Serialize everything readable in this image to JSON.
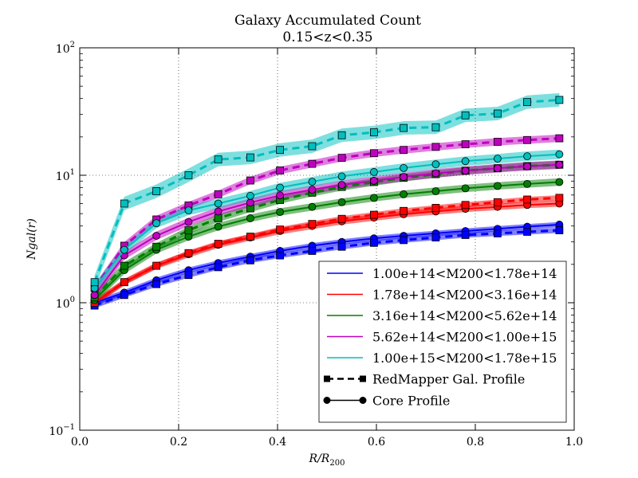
{
  "chart_data": {
    "type": "line",
    "title": "Galaxy Accumulated Count",
    "subtitle": "0.15<z<0.35",
    "xlabel": "R/R",
    "xlabel_sub": "200",
    "ylabel": "Ngal(r)",
    "xlim": [
      0.0,
      1.0
    ],
    "ylim": [
      0.1,
      100
    ],
    "yscale": "log",
    "grid": true,
    "legend_position": "lower-right",
    "x_ticks": [
      "0.0",
      "0.2",
      "0.4",
      "0.6",
      "0.8",
      "1.0"
    ],
    "y_ticks": [
      {
        "base": "10",
        "exp": "−1",
        "value": 0.1
      },
      {
        "base": "10",
        "exp": "0",
        "value": 1
      },
      {
        "base": "10",
        "exp": "1",
        "value": 10
      },
      {
        "base": "10",
        "exp": "2",
        "value": 100
      }
    ],
    "x": [
      0.03,
      0.09,
      0.155,
      0.22,
      0.28,
      0.345,
      0.405,
      0.47,
      0.53,
      0.595,
      0.655,
      0.72,
      0.78,
      0.845,
      0.905,
      0.97
    ],
    "series": [
      {
        "name": "1.00e+14<M200<1.78e+14",
        "color": "#0000ff",
        "redmapper": [
          0.95,
          1.15,
          1.4,
          1.65,
          1.9,
          2.15,
          2.35,
          2.55,
          2.75,
          2.95,
          3.1,
          3.25,
          3.4,
          3.5,
          3.6,
          3.7
        ],
        "redmapper_band": 0.05,
        "core": [
          1.0,
          1.2,
          1.5,
          1.8,
          2.05,
          2.3,
          2.55,
          2.8,
          3.0,
          3.2,
          3.35,
          3.5,
          3.65,
          3.8,
          3.95,
          4.1
        ],
        "core_band": 0.05
      },
      {
        "name": "1.78e+14<M200<3.16e+14",
        "color": "#ff0000",
        "redmapper": [
          1.0,
          1.45,
          1.95,
          2.45,
          2.9,
          3.3,
          3.75,
          4.15,
          4.55,
          4.9,
          5.25,
          5.55,
          5.85,
          6.15,
          6.45,
          6.65
        ],
        "redmapper_band": 0.05,
        "core": [
          1.0,
          1.45,
          1.95,
          2.4,
          2.85,
          3.25,
          3.65,
          4.0,
          4.35,
          4.65,
          4.95,
          5.2,
          5.45,
          5.65,
          5.85,
          6.0
        ],
        "core_band": 0.06
      },
      {
        "name": "3.16e+14<M200<5.62e+14",
        "color": "#008000",
        "redmapper": [
          1.1,
          1.95,
          2.75,
          3.7,
          4.6,
          5.5,
          6.4,
          7.3,
          8.1,
          8.85,
          9.55,
          10.2,
          10.85,
          11.35,
          11.8,
          12.1
        ],
        "redmapper_band": 0.07,
        "core": [
          1.05,
          1.8,
          2.6,
          3.3,
          3.95,
          4.6,
          5.15,
          5.65,
          6.15,
          6.65,
          7.1,
          7.5,
          7.9,
          8.25,
          8.55,
          8.85
        ],
        "core_band": 0.07
      },
      {
        "name": "5.62e+14<M200<1.00e+15",
        "color": "#bf00bf",
        "redmapper": [
          1.3,
          2.8,
          4.5,
          5.8,
          7.1,
          9.1,
          10.9,
          12.3,
          13.7,
          14.9,
          15.8,
          16.7,
          17.5,
          18.3,
          18.9,
          19.5
        ],
        "redmapper_band": 0.07,
        "core": [
          1.15,
          2.35,
          3.35,
          4.3,
          5.2,
          6.1,
          6.95,
          7.7,
          8.4,
          9.05,
          9.7,
          10.35,
          10.85,
          11.35,
          11.75,
          12.1
        ],
        "core_band": 0.08
      },
      {
        "name": "1.00e+15<M200<1.78e+15",
        "color": "#00bfbf",
        "redmapper": [
          1.45,
          6.0,
          7.5,
          10.0,
          13.3,
          13.8,
          15.8,
          16.9,
          20.6,
          21.7,
          23.5,
          23.8,
          29.5,
          30.5,
          37.5,
          39.0
        ],
        "redmapper_band": 0.13,
        "core": [
          1.3,
          2.6,
          4.2,
          5.3,
          6.0,
          6.9,
          8.0,
          8.9,
          9.8,
          10.6,
          11.4,
          12.2,
          12.9,
          13.5,
          14.1,
          14.6
        ],
        "core_band": 0.09
      }
    ],
    "legend_styles": [
      {
        "label": "RedMapper Gal. Profile",
        "style": "dashed-square"
      },
      {
        "label": "Core Profile",
        "style": "solid-circle"
      }
    ]
  }
}
